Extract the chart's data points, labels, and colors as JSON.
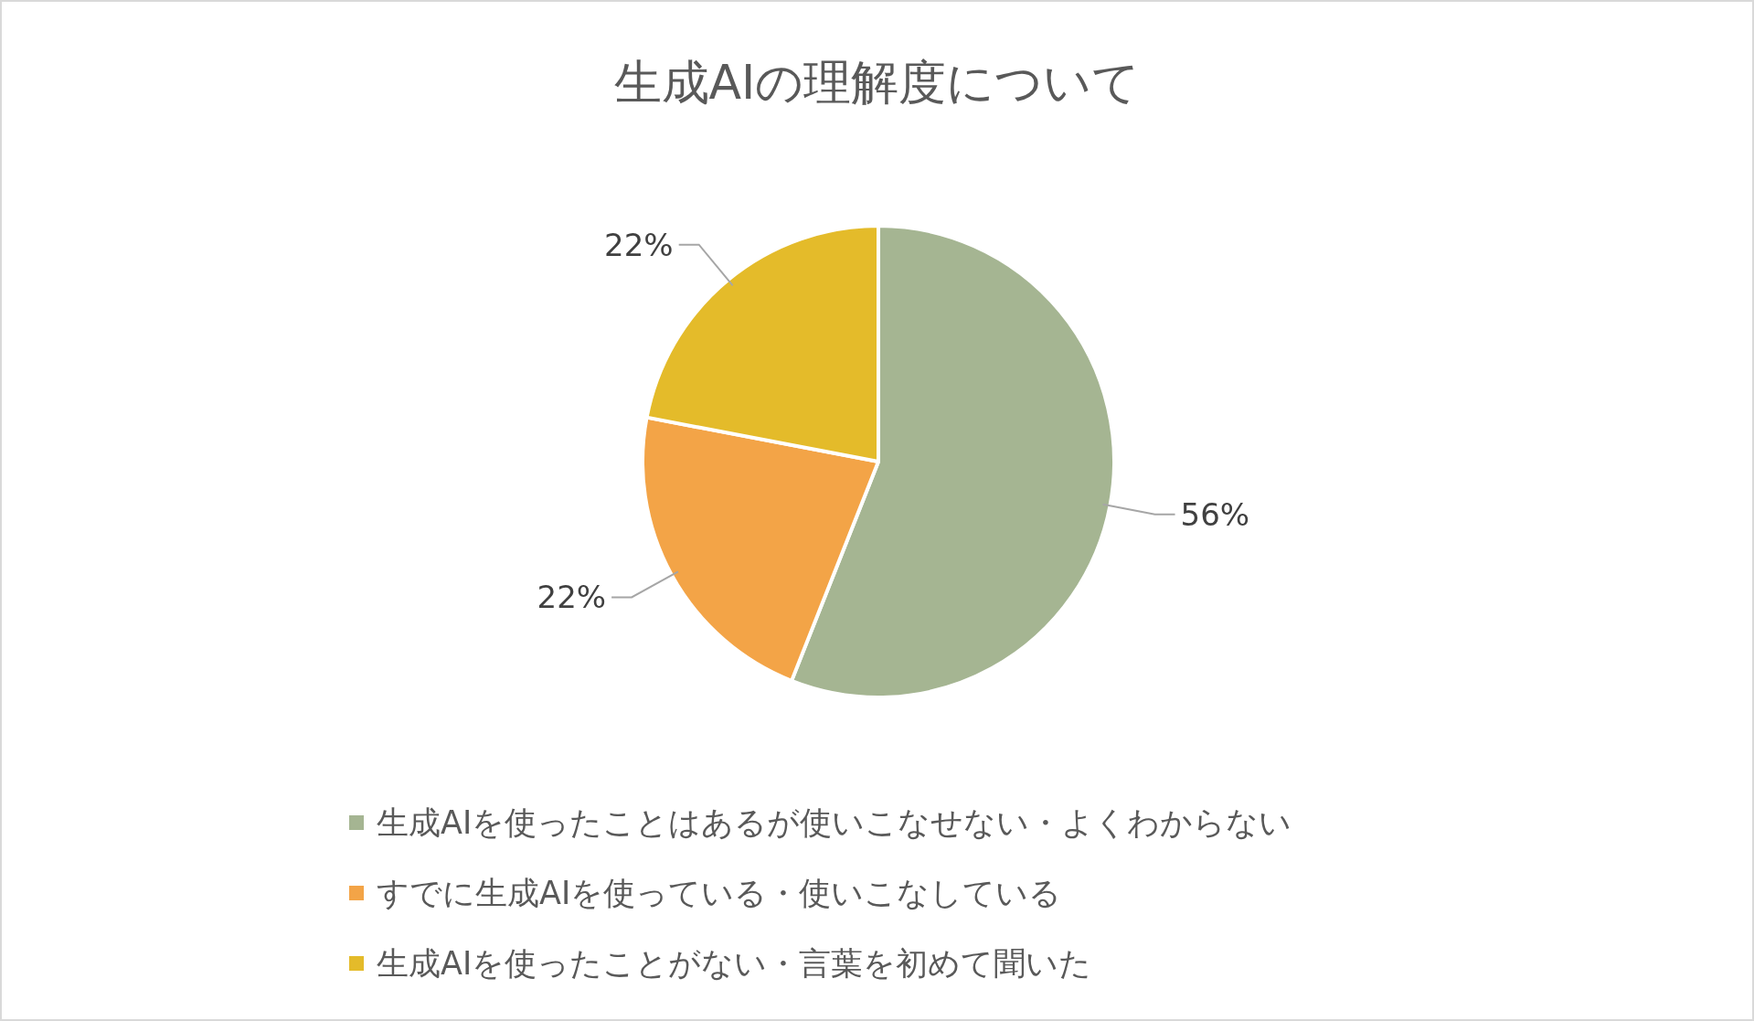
{
  "chart_data": {
    "type": "pie",
    "title": "生成AIの理解度について",
    "categories": [
      "生成AIを使ったことはあるが使いこなせない・よくわからない",
      "すでに生成AIを使っている・使いこなしている",
      "生成AIを使ったことがない・言葉を初めて聞いた"
    ],
    "values": [
      56,
      22,
      22
    ],
    "colors": [
      "#a5b592",
      "#f3a447",
      "#e4bb2a"
    ],
    "value_labels": [
      "56%",
      "22%",
      "22%"
    ],
    "legend": "bottom"
  }
}
